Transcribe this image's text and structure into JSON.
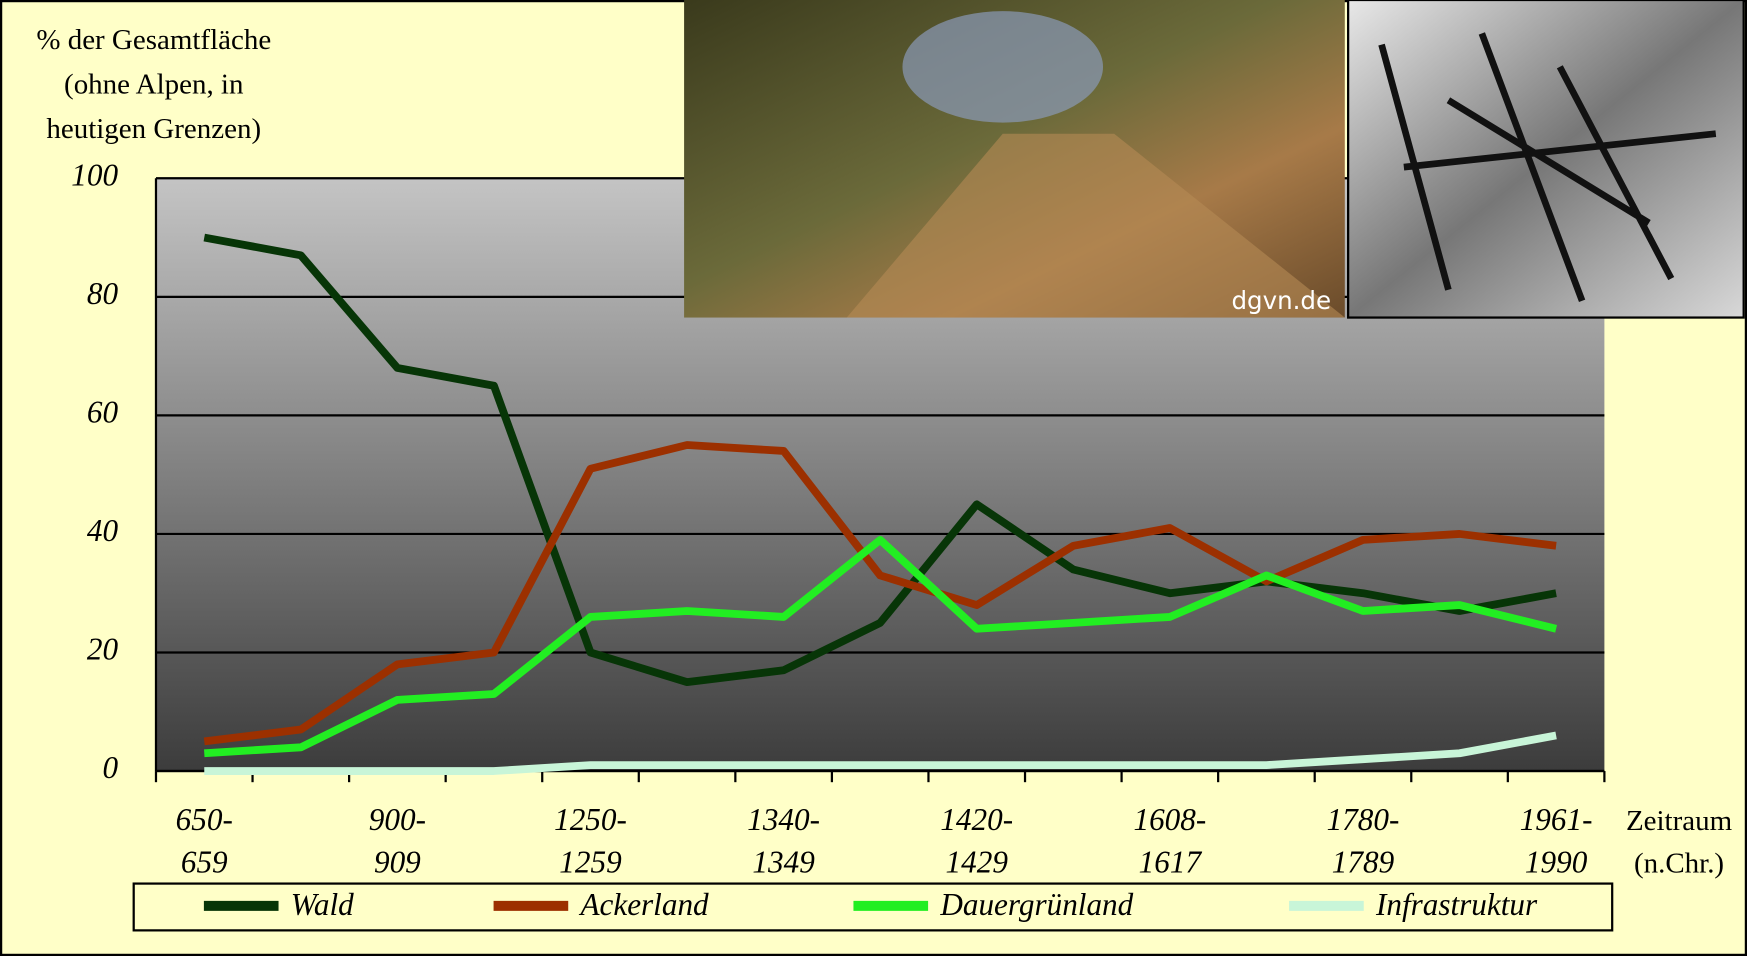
{
  "chart_data": {
    "type": "line",
    "y_label": "% der Gesamtfläche\n(ohne Alpen, in\nheutigen Grenzen)",
    "x_label": "Zeitraum\n(n.Chr.)",
    "image_credit": "dgvn.de",
    "categories": [
      "650-\n659",
      null,
      "900-\n909",
      null,
      "1250-\n1259",
      null,
      "1340-\n1349",
      null,
      "1420-\n1429",
      null,
      "1608-\n1617",
      null,
      "1780-\n1789",
      null,
      "1961-\n1990"
    ],
    "series": [
      {
        "name": "Wald",
        "color": "#073507",
        "values": [
          90,
          87,
          68,
          65,
          20,
          15,
          17,
          25,
          45,
          34,
          30,
          32,
          30,
          27,
          30
        ]
      },
      {
        "name": "Ackerland",
        "color": "#9c3000",
        "values": [
          5,
          7,
          18,
          20,
          51,
          55,
          54,
          33,
          28,
          38,
          41,
          32,
          39,
          40,
          38
        ]
      },
      {
        "name": "Dauergrünland",
        "color": "#22ee22",
        "values": [
          3,
          4,
          12,
          13,
          26,
          27,
          26,
          39,
          24,
          25,
          26,
          33,
          27,
          28,
          24
        ]
      },
      {
        "name": "Infrastruktur",
        "color": "#c8f5d8",
        "values": [
          0,
          0,
          0,
          0,
          1,
          1,
          1,
          1,
          1,
          1,
          1,
          1,
          2,
          3,
          6
        ]
      }
    ],
    "ylim": [
      0,
      100
    ],
    "yticks": [
      0,
      20,
      40,
      60,
      80,
      100
    ],
    "grid": true
  }
}
